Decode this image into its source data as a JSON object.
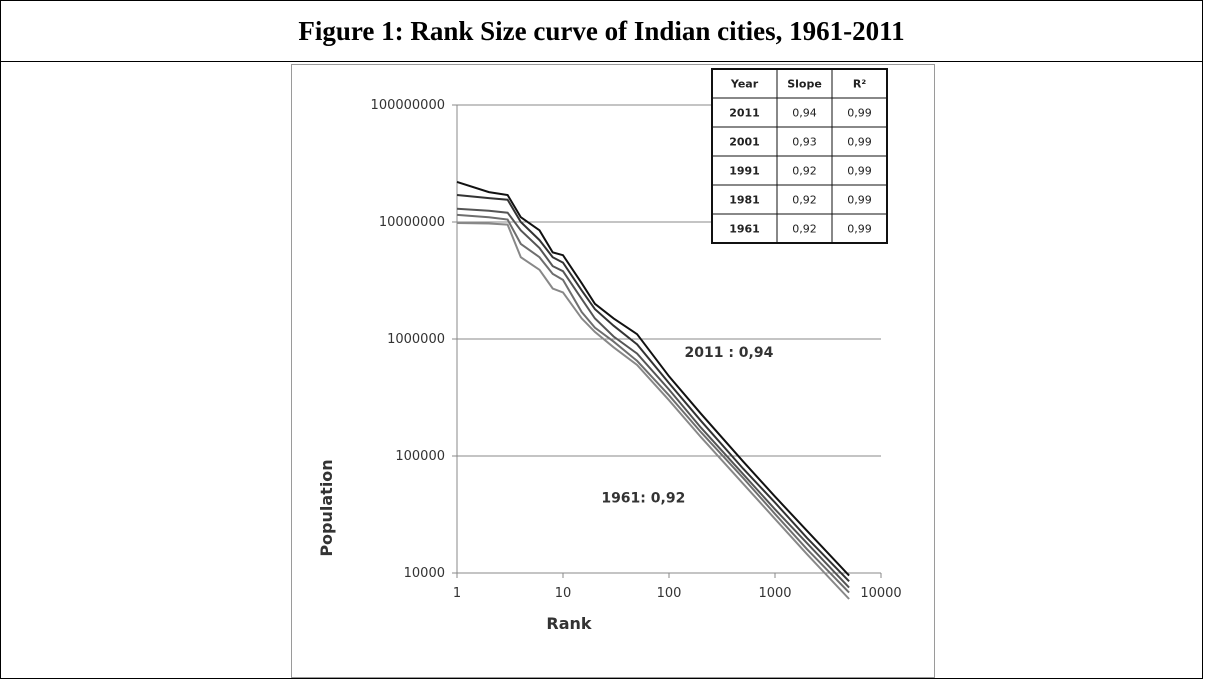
{
  "figure": {
    "title": "Figure 1: Rank Size curve of Indian cities, 1961-2011"
  },
  "chart_data": {
    "type": "line",
    "title": "Figure 1: Rank Size curve of Indian cities, 1961-2011",
    "xlabel": "Rank",
    "ylabel": "Population",
    "x_scale": "log",
    "y_scale": "log",
    "xlim": [
      1,
      10000
    ],
    "ylim": [
      10000,
      100000000
    ],
    "x_ticks": [
      "1",
      "10",
      "100",
      "1000",
      "10000"
    ],
    "y_ticks": [
      "10000",
      "100000",
      "1000000",
      "10000000",
      "100000000"
    ],
    "grid": "horizontal",
    "series_colors": [
      "#111111",
      "#333333",
      "#555555",
      "#6e6e6e",
      "#888888"
    ],
    "series": [
      {
        "name": "2011",
        "points": [
          [
            1,
            22000000
          ],
          [
            2,
            18000000
          ],
          [
            3,
            17000000
          ],
          [
            4,
            11000000
          ],
          [
            6,
            8500000
          ],
          [
            8,
            5500000
          ],
          [
            10,
            5200000
          ],
          [
            15,
            3000000
          ],
          [
            20,
            2000000
          ],
          [
            30,
            1500000
          ],
          [
            50,
            1100000
          ],
          [
            100,
            480000
          ],
          [
            200,
            230000
          ],
          [
            500,
            90000
          ],
          [
            1000,
            45000
          ],
          [
            2000,
            23000
          ],
          [
            5000,
            9500
          ]
        ]
      },
      {
        "name": "2001",
        "points": [
          [
            1,
            17000000
          ],
          [
            2,
            16000000
          ],
          [
            3,
            15500000
          ],
          [
            4,
            10000000
          ],
          [
            6,
            7000000
          ],
          [
            8,
            5000000
          ],
          [
            10,
            4500000
          ],
          [
            15,
            2600000
          ],
          [
            20,
            1800000
          ],
          [
            30,
            1300000
          ],
          [
            50,
            900000
          ],
          [
            100,
            420000
          ],
          [
            200,
            200000
          ],
          [
            500,
            78000
          ],
          [
            1000,
            40000
          ],
          [
            2000,
            20000
          ],
          [
            5000,
            8500
          ]
        ]
      },
      {
        "name": "1991",
        "points": [
          [
            1,
            13000000
          ],
          [
            2,
            12500000
          ],
          [
            3,
            12000000
          ],
          [
            4,
            8500000
          ],
          [
            6,
            6000000
          ],
          [
            8,
            4200000
          ],
          [
            10,
            3800000
          ],
          [
            15,
            2200000
          ],
          [
            20,
            1500000
          ],
          [
            30,
            1050000
          ],
          [
            50,
            750000
          ],
          [
            100,
            370000
          ],
          [
            200,
            175000
          ],
          [
            500,
            70000
          ],
          [
            1000,
            35000
          ],
          [
            2000,
            18000
          ],
          [
            5000,
            7500
          ]
        ]
      },
      {
        "name": "1981",
        "points": [
          [
            1,
            11500000
          ],
          [
            2,
            11000000
          ],
          [
            3,
            10500000
          ],
          [
            4,
            6500000
          ],
          [
            6,
            5000000
          ],
          [
            8,
            3600000
          ],
          [
            10,
            3200000
          ],
          [
            15,
            1700000
          ],
          [
            20,
            1250000
          ],
          [
            30,
            950000
          ],
          [
            50,
            650000
          ],
          [
            100,
            330000
          ],
          [
            200,
            160000
          ],
          [
            500,
            65000
          ],
          [
            1000,
            32000
          ],
          [
            2000,
            16000
          ],
          [
            5000,
            6800
          ]
        ]
      },
      {
        "name": "1961",
        "points": [
          [
            1,
            9800000
          ],
          [
            2,
            9700000
          ],
          [
            3,
            9500000
          ],
          [
            4,
            5000000
          ],
          [
            6,
            3900000
          ],
          [
            8,
            2700000
          ],
          [
            10,
            2500000
          ],
          [
            15,
            1500000
          ],
          [
            20,
            1150000
          ],
          [
            30,
            850000
          ],
          [
            50,
            600000
          ],
          [
            100,
            300000
          ],
          [
            200,
            145000
          ],
          [
            500,
            58000
          ],
          [
            1000,
            29000
          ],
          [
            2000,
            14500
          ],
          [
            5000,
            6000
          ]
        ]
      }
    ],
    "annotations": [
      "2011 : 0,94",
      "1961: 0,92"
    ],
    "inset_table": {
      "headers": [
        "Year",
        "Slope",
        "R²"
      ],
      "rows": [
        [
          "2011",
          "0,94",
          "0,99"
        ],
        [
          "2001",
          "0,93",
          "0,99"
        ],
        [
          "1991",
          "0,92",
          "0,99"
        ],
        [
          "1981",
          "0,92",
          "0,99"
        ],
        [
          "1961",
          "0,92",
          "0,99"
        ]
      ]
    }
  }
}
